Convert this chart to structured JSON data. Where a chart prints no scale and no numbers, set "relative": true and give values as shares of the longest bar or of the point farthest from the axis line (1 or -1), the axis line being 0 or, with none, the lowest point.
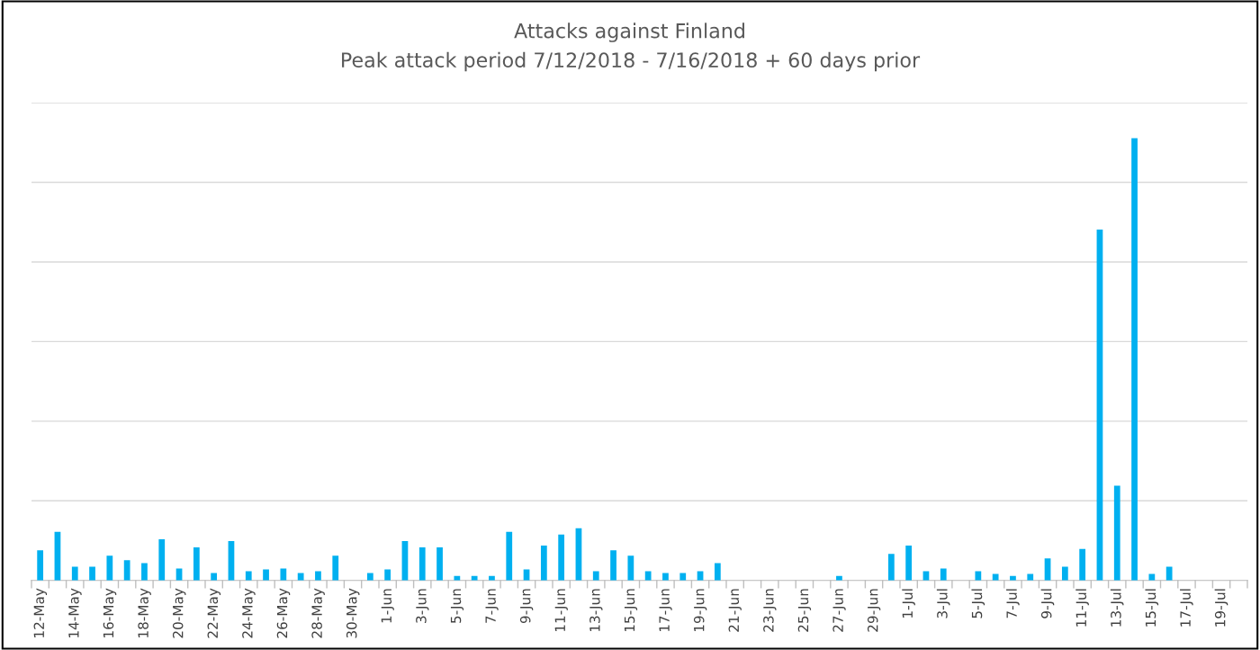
{
  "chart_data": {
    "type": "bar",
    "title": "Attacks against Finland",
    "subtitle": "Peak attack period 7/12/2018 - 7/16/2018 + 60 days prior",
    "categories": [
      "12-May",
      null,
      "14-May",
      null,
      "16-May",
      null,
      "18-May",
      null,
      "20-May",
      null,
      "22-May",
      null,
      "24-May",
      null,
      "26-May",
      null,
      "28-May",
      null,
      "30-May",
      null,
      "1-Jun",
      null,
      "3-Jun",
      null,
      "5-Jun",
      null,
      "7-Jun",
      null,
      "9-Jun",
      null,
      "11-Jun",
      null,
      "13-Jun",
      null,
      "15-Jun",
      null,
      "17-Jun",
      null,
      "19-Jun",
      null,
      "21-Jun",
      null,
      "23-Jun",
      null,
      "25-Jun",
      null,
      "27-Jun",
      null,
      "29-Jun",
      null,
      "1-Jul",
      null,
      "3-Jul",
      null,
      "5-Jul",
      null,
      "7-Jul",
      null,
      "9-Jul",
      null,
      "11-Jul",
      null,
      "13-Jul",
      null,
      "15-Jul",
      null,
      "17-Jul",
      null,
      "19-Jul",
      null
    ],
    "series": [
      {
        "color": "#00b0f0",
        "values": [
          0.068,
          0.11,
          0.031,
          0.031,
          0.056,
          0.046,
          0.039,
          0.093,
          0.027,
          0.075,
          0.017,
          0.089,
          0.021,
          0.025,
          0.027,
          0.017,
          0.021,
          0.056,
          0,
          0.017,
          0.025,
          0.089,
          0.075,
          0.075,
          0.01,
          0.01,
          0.01,
          0.11,
          0.025,
          0.079,
          0.104,
          0.118,
          0.021,
          0.068,
          0.056,
          0.021,
          0.017,
          0.017,
          0.021,
          0.039,
          0,
          0,
          0,
          0,
          0,
          0,
          0.01,
          0,
          0,
          0.06,
          0.079,
          0.021,
          0.027,
          0,
          0.021,
          0.015,
          0.01,
          0.015,
          0.05,
          0.031,
          0.071,
          0.793,
          0.214,
          1,
          0.015,
          0.031,
          0,
          0,
          0,
          0
        ]
      }
    ],
    "relative": true,
    "grid": "y",
    "legend": false
  }
}
